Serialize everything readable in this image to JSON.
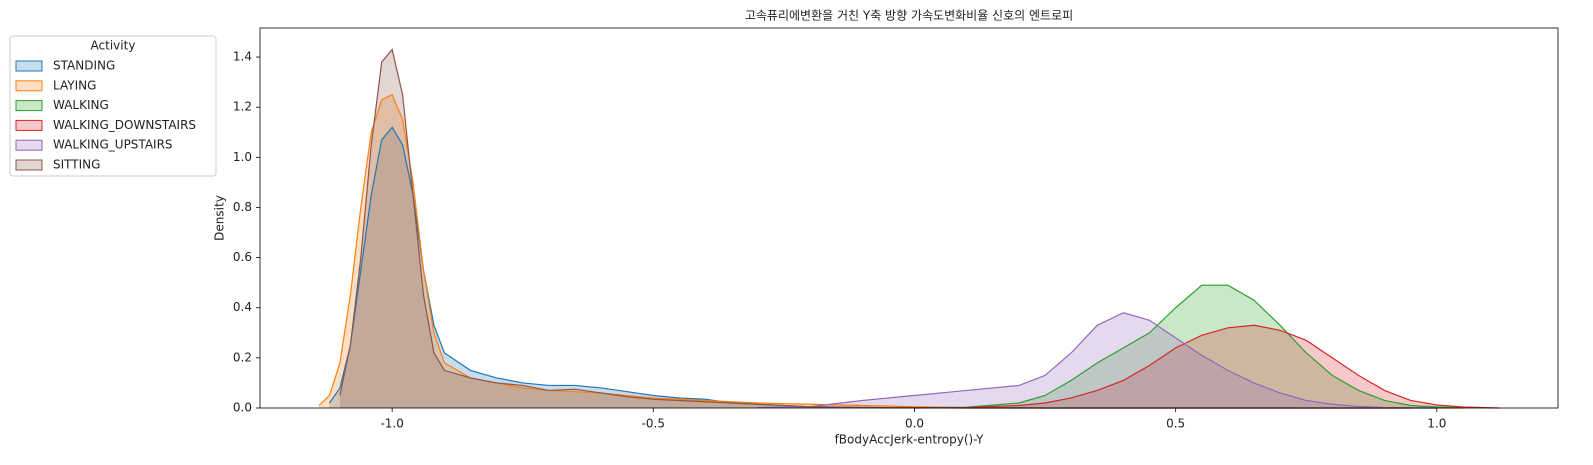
{
  "chart_data": {
    "type": "kde",
    "title": "고속퓨리에변환을 거친 Y축 방향 가속도변화비율 신호의 엔트로피",
    "xlabel": "fBodyAccJerk-entropy()-Y",
    "ylabel": "Density",
    "legend_title": "Activity",
    "legend": "outside upper left",
    "xlim": [
      -1.253,
      1.232
    ],
    "ylim": [
      0,
      1.516
    ],
    "xticks": [
      {
        "value": -1.0,
        "label": "-1.0"
      },
      -0.5,
      {
        "value": 0.0,
        "label": "0.0"
      },
      0.5,
      {
        "value": 1.0,
        "label": "1.0"
      }
    ],
    "yticks": [
      {
        "value": 0,
        "label": "0.0"
      },
      0.2,
      0.4,
      0.6,
      0.8,
      {
        "value": 1.0,
        "label": "1.0"
      },
      1.2,
      1.4
    ],
    "x": [
      -1.14,
      -1.12,
      -1.1,
      -1.08,
      -1.06,
      -1.04,
      -1.02,
      -1.0,
      -0.98,
      -0.96,
      -0.94,
      -0.92,
      -0.9,
      -0.85,
      -0.8,
      -0.75,
      -0.7,
      -0.65,
      -0.6,
      -0.55,
      -0.5,
      -0.45,
      -0.4,
      -0.35,
      -0.3,
      -0.2,
      -0.1,
      0.0,
      0.1,
      0.2,
      0.25,
      0.3,
      0.35,
      0.4,
      0.45,
      0.5,
      0.55,
      0.6,
      0.65,
      0.7,
      0.75,
      0.8,
      0.85,
      0.9,
      0.95,
      1.0,
      1.05,
      1.1,
      1.12
    ],
    "series": [
      {
        "name": "STANDING",
        "color": "#1f77b4",
        "values": [
          null,
          0.02,
          0.08,
          0.25,
          0.55,
          0.85,
          1.07,
          1.12,
          1.05,
          0.85,
          0.55,
          0.33,
          0.22,
          0.15,
          0.12,
          0.1,
          0.09,
          0.09,
          0.08,
          0.065,
          0.05,
          0.04,
          0.035,
          0.02,
          0.015,
          0.005,
          0.002,
          0.001,
          0.001,
          0.001,
          0,
          0,
          0,
          0,
          0,
          0,
          0,
          0,
          0,
          0,
          0,
          0,
          0,
          0,
          0,
          0,
          null,
          null,
          null
        ]
      },
      {
        "name": "LAYING",
        "color": "#ff7f0e",
        "values": [
          0.01,
          0.05,
          0.18,
          0.45,
          0.8,
          1.1,
          1.23,
          1.25,
          1.15,
          0.9,
          0.55,
          0.3,
          0.18,
          0.12,
          0.1,
          0.08,
          0.07,
          0.065,
          0.06,
          0.05,
          0.04,
          0.035,
          0.03,
          0.025,
          0.02,
          0.015,
          0.01,
          0.005,
          0.001,
          0,
          0,
          0,
          0,
          0,
          0,
          0,
          0,
          0,
          0,
          0,
          0,
          0,
          0,
          0,
          0,
          0,
          0,
          null,
          null
        ]
      },
      {
        "name": "WALKING",
        "color": "#2ca02c",
        "values": [
          null,
          null,
          null,
          null,
          null,
          null,
          null,
          null,
          null,
          null,
          null,
          null,
          null,
          null,
          null,
          null,
          null,
          null,
          null,
          null,
          null,
          null,
          null,
          null,
          null,
          null,
          null,
          0.001,
          0.003,
          0.02,
          0.05,
          0.11,
          0.18,
          0.24,
          0.3,
          0.4,
          0.49,
          0.49,
          0.43,
          0.33,
          0.22,
          0.13,
          0.07,
          0.03,
          0.01,
          0.004,
          0.001,
          null,
          null
        ]
      },
      {
        "name": "WALKING_DOWNSTAIRS",
        "color": "#d62728",
        "values": [
          null,
          null,
          null,
          null,
          null,
          null,
          null,
          null,
          null,
          null,
          null,
          null,
          null,
          null,
          null,
          null,
          null,
          null,
          null,
          null,
          null,
          null,
          null,
          null,
          null,
          null,
          null,
          0,
          0.002,
          0.01,
          0.02,
          0.04,
          0.07,
          0.11,
          0.17,
          0.24,
          0.29,
          0.32,
          0.33,
          0.31,
          0.27,
          0.2,
          0.13,
          0.07,
          0.03,
          0.012,
          0.004,
          0.001,
          0
        ]
      },
      {
        "name": "WALKING_UPSTAIRS",
        "color": "#9467bd",
        "values": [
          null,
          null,
          null,
          null,
          null,
          null,
          null,
          null,
          null,
          null,
          null,
          null,
          null,
          null,
          null,
          null,
          null,
          null,
          null,
          null,
          null,
          null,
          null,
          null,
          0.002,
          0.005,
          0.03,
          0.05,
          0.07,
          0.09,
          0.13,
          0.22,
          0.33,
          0.38,
          0.35,
          0.28,
          0.21,
          0.15,
          0.1,
          0.06,
          0.03,
          0.015,
          0.006,
          0.002,
          0.001,
          0,
          null,
          null,
          null
        ]
      },
      {
        "name": "SITTING",
        "color": "#8c564b",
        "values": [
          null,
          null,
          0.05,
          0.25,
          0.6,
          1.05,
          1.38,
          1.43,
          1.25,
          0.85,
          0.45,
          0.22,
          0.15,
          0.12,
          0.1,
          0.09,
          0.07,
          0.075,
          0.06,
          0.045,
          0.035,
          0.03,
          0.025,
          0.02,
          0.015,
          0.005,
          0.002,
          0.001,
          0,
          0,
          0,
          0,
          0,
          0,
          0,
          0,
          0,
          0,
          0,
          0,
          0,
          0,
          0,
          0,
          0,
          null,
          null,
          null,
          null
        ]
      }
    ]
  }
}
